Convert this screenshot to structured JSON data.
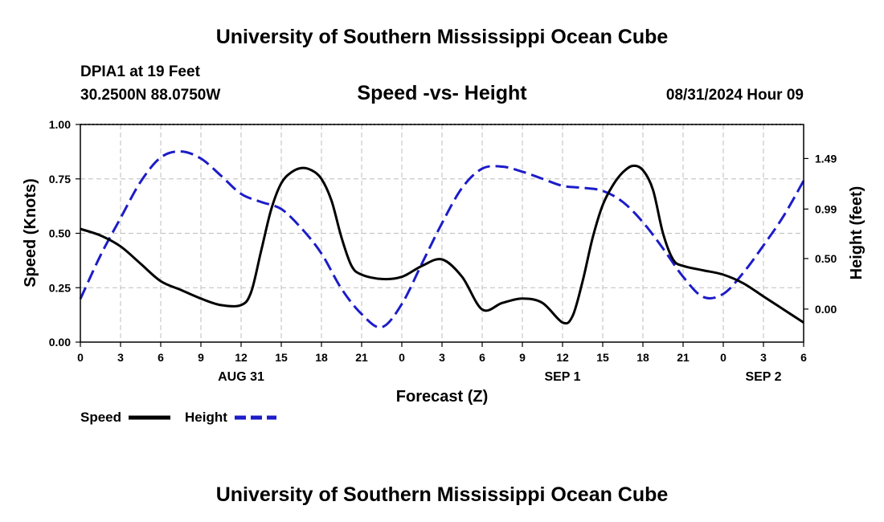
{
  "header": {
    "title": "University of Southern Mississippi Ocean Cube",
    "station": "DPIA1 at 19 Feet",
    "location": "30.2500N  88.0750W",
    "datetime": "08/31/2024 Hour 09"
  },
  "footer": {
    "title": "University of Southern Mississippi Ocean Cube"
  },
  "chart_data": {
    "type": "line",
    "title": "Speed -vs- Height",
    "xlabel": "Forecast (Z)",
    "ylabel_left": "Speed (Knots)",
    "ylabel_right": "Height (feet)",
    "x_unit": "hours since 08/31/2024 00Z",
    "xlim": [
      0,
      54
    ],
    "ylim_left": [
      0,
      1.0
    ],
    "ylim_right": [
      -0.327,
      1.827
    ],
    "grid": true,
    "x_ticks": [
      {
        "x": 0,
        "label": "0"
      },
      {
        "x": 3,
        "label": "3"
      },
      {
        "x": 6,
        "label": "6"
      },
      {
        "x": 9,
        "label": "9"
      },
      {
        "x": 12,
        "label": "12"
      },
      {
        "x": 15,
        "label": "15"
      },
      {
        "x": 18,
        "label": "18"
      },
      {
        "x": 21,
        "label": "21"
      },
      {
        "x": 24,
        "label": "0"
      },
      {
        "x": 27,
        "label": "3"
      },
      {
        "x": 30,
        "label": "6"
      },
      {
        "x": 33,
        "label": "9"
      },
      {
        "x": 36,
        "label": "12"
      },
      {
        "x": 39,
        "label": "15"
      },
      {
        "x": 42,
        "label": "18"
      },
      {
        "x": 45,
        "label": "21"
      },
      {
        "x": 48,
        "label": "0"
      },
      {
        "x": 51,
        "label": "3"
      },
      {
        "x": 54,
        "label": "6"
      }
    ],
    "date_labels": [
      {
        "x": 12,
        "label": "AUG 31"
      },
      {
        "x": 36,
        "label": "SEP 1"
      },
      {
        "x": 51,
        "label": "SEP 2"
      }
    ],
    "y_ticks_left": [
      {
        "value": 0.0,
        "label": "0.00"
      },
      {
        "value": 0.25,
        "label": "0.25"
      },
      {
        "value": 0.5,
        "label": "0.50"
      },
      {
        "value": 0.75,
        "label": "0.75"
      },
      {
        "value": 1.0,
        "label": "1.00"
      }
    ],
    "y_ticks_right": [
      {
        "value": 0.0,
        "label": "0.00"
      },
      {
        "value": 0.5,
        "label": "0.50"
      },
      {
        "value": 0.99,
        "label": "0.99"
      },
      {
        "value": 1.49,
        "label": "1.49"
      }
    ],
    "series": [
      {
        "name": "Speed",
        "axis": "left",
        "color": "#000000",
        "dash": "solid",
        "x": [
          0,
          1.5,
          3,
          4.5,
          6,
          7.5,
          9,
          10.5,
          12,
          12.75,
          13.5,
          14.25,
          15,
          15.75,
          16.5,
          17.25,
          18,
          18.75,
          19.5,
          20.25,
          21,
          22.5,
          24,
          25.5,
          27,
          28.5,
          30,
          31.5,
          33,
          34.5,
          36,
          36.75,
          37.5,
          38.25,
          39,
          39.75,
          40.5,
          41.25,
          42,
          42.75,
          43.5,
          44.25,
          45,
          46.5,
          48,
          49.5,
          51,
          52.5,
          54
        ],
        "values": [
          0.52,
          0.49,
          0.44,
          0.36,
          0.28,
          0.24,
          0.2,
          0.17,
          0.17,
          0.23,
          0.42,
          0.61,
          0.73,
          0.78,
          0.8,
          0.79,
          0.75,
          0.65,
          0.48,
          0.35,
          0.31,
          0.29,
          0.3,
          0.35,
          0.38,
          0.3,
          0.15,
          0.18,
          0.2,
          0.18,
          0.09,
          0.12,
          0.28,
          0.48,
          0.63,
          0.72,
          0.78,
          0.81,
          0.79,
          0.7,
          0.5,
          0.38,
          0.35,
          0.33,
          0.31,
          0.27,
          0.21,
          0.15,
          0.09
        ]
      },
      {
        "name": "Height",
        "axis": "right",
        "color": "#1c1cc8",
        "dash": "dashed",
        "x": [
          0,
          1.5,
          3,
          4.5,
          6,
          7.5,
          9,
          10.5,
          12,
          13.5,
          15,
          16.5,
          18,
          19.5,
          21,
          22.5,
          24,
          25.5,
          27,
          28.5,
          30,
          31.5,
          33,
          34.5,
          36,
          37.5,
          39,
          40.5,
          42,
          43.5,
          45,
          46.5,
          48,
          49.5,
          51,
          52.5,
          54
        ],
        "values": [
          0.1,
          0.53,
          0.9,
          1.26,
          1.5,
          1.56,
          1.49,
          1.32,
          1.14,
          1.06,
          0.99,
          0.8,
          0.55,
          0.2,
          -0.05,
          -0.18,
          0.05,
          0.45,
          0.85,
          1.2,
          1.39,
          1.41,
          1.36,
          1.29,
          1.22,
          1.2,
          1.17,
          1.06,
          0.86,
          0.6,
          0.32,
          0.12,
          0.15,
          0.36,
          0.63,
          0.92,
          1.27
        ]
      }
    ],
    "legend": [
      {
        "name": "Speed",
        "color": "#000000",
        "dash": "solid"
      },
      {
        "name": "Height",
        "color": "#1c1cc8",
        "dash": "dashed"
      }
    ],
    "legend_position": "bottom-left"
  }
}
